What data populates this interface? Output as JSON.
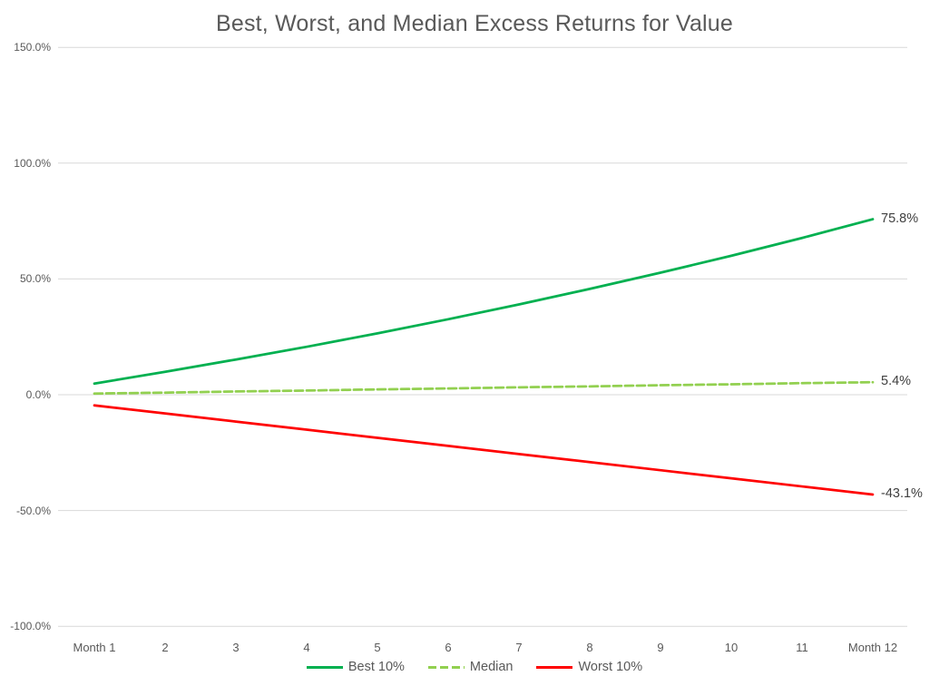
{
  "title": "Best, Worst, and Median Excess Returns for Value",
  "colors": {
    "best": "#00B050",
    "median": "#92D050",
    "worst": "#FF0000",
    "gridline": "#D9D9D9",
    "axis_text": "#595959",
    "data_label_text": "#404040",
    "title_text": "#595959",
    "background": "#FFFFFF"
  },
  "chart_data": {
    "type": "line",
    "title": "Best, Worst, and Median Excess Returns for Value",
    "categories": [
      "Month 1",
      "2",
      "3",
      "4",
      "5",
      "6",
      "7",
      "8",
      "9",
      "10",
      "11",
      "Month 12"
    ],
    "series": [
      {
        "name": "Best 10%",
        "color": "#00B050",
        "line_style": "solid",
        "values": [
          4.8,
          9.9,
          15.2,
          20.7,
          26.5,
          32.6,
          39.0,
          45.7,
          52.7,
          60.0,
          67.7,
          75.8
        ],
        "end_label": "75.8%"
      },
      {
        "name": "Median",
        "color": "#92D050",
        "line_style": "dashed",
        "values": [
          0.5,
          0.9,
          1.4,
          1.8,
          2.3,
          2.7,
          3.2,
          3.6,
          4.1,
          4.5,
          5.0,
          5.4
        ],
        "end_label": "5.4%"
      },
      {
        "name": "Worst 10%",
        "color": "#FF0000",
        "line_style": "solid",
        "values": [
          -4.6,
          -8.1,
          -11.6,
          -15.1,
          -18.6,
          -22.1,
          -25.6,
          -29.1,
          -32.6,
          -36.1,
          -39.6,
          -43.1
        ],
        "end_label": "-43.1%"
      }
    ],
    "xlabel": "",
    "ylabel": "",
    "y_axis": {
      "min": -100,
      "max": 150,
      "ticks": [
        {
          "label": "150.0%",
          "value": 150
        },
        {
          "label": "100.0%",
          "value": 100
        },
        {
          "label": "50.0%",
          "value": 50
        },
        {
          "label": "0.0%",
          "value": 0
        },
        {
          "label": "-50.0%",
          "value": -50
        },
        {
          "label": "-100.0%",
          "value": -100
        }
      ]
    },
    "grid": "horizontal",
    "legend_position": "bottom"
  }
}
